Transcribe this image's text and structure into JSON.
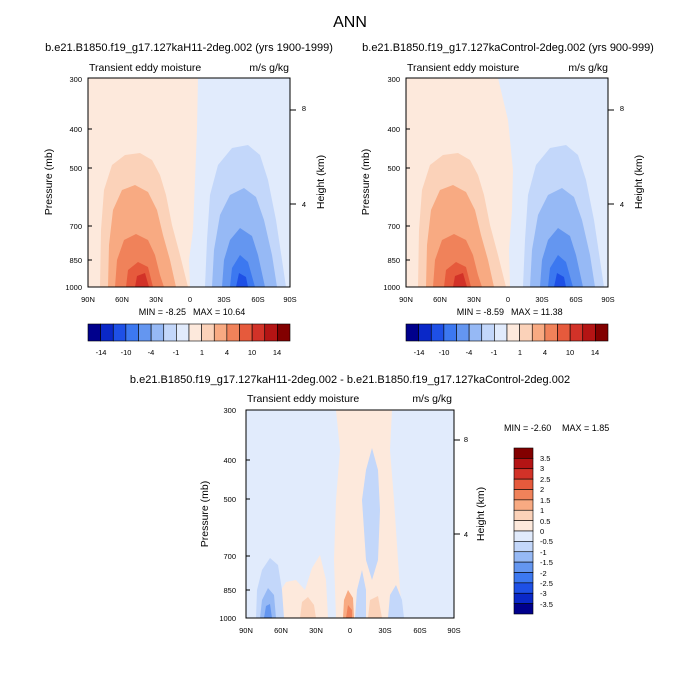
{
  "main_title": "ANN",
  "chart_data": [
    {
      "type": "contour",
      "title": "b.e21.B1850.f19_g17.127kaH11-2deg.002 (yrs 1900-1999)",
      "left_string": "Transient eddy moisture",
      "right_string": "m/s g/kg",
      "ylabel": "Pressure (mb)",
      "ylabel_right": "Height (km)",
      "xticks": [
        "90N",
        "60N",
        "30N",
        "0",
        "30S",
        "60S",
        "90S"
      ],
      "yticks": [
        "300",
        "400",
        "500",
        "700",
        "850",
        "1000"
      ],
      "height_ticks": [
        "8",
        "4"
      ],
      "min_label": "MIN = -8.25",
      "max_label": "MAX = 10.64",
      "min": -8.25,
      "max": 10.64
    },
    {
      "type": "contour",
      "title": "b.e21.B1850.f19_g17.127kaControl-2deg.002 (yrs 900-999)",
      "left_string": "Transient eddy moisture",
      "right_string": "m/s g/kg",
      "ylabel": "Pressure (mb)",
      "ylabel_right": "Height (km)",
      "xticks": [
        "90N",
        "60N",
        "30N",
        "0",
        "30S",
        "60S",
        "90S"
      ],
      "yticks": [
        "300",
        "400",
        "500",
        "700",
        "850",
        "1000"
      ],
      "height_ticks": [
        "8",
        "4"
      ],
      "min_label": "MIN = -8.59",
      "max_label": "MAX = 11.38",
      "min": -8.59,
      "max": 11.38
    },
    {
      "type": "contour",
      "title": "b.e21.B1850.f19_g17.127kaH11-2deg.002 - b.e21.B1850.f19_g17.127kaControl-2deg.002",
      "left_string": "Transient eddy moisture",
      "right_string": "m/s g/kg",
      "ylabel": "Pressure (mb)",
      "ylabel_right": "Height (km)",
      "xticks": [
        "90N",
        "60N",
        "30N",
        "0",
        "30S",
        "60S",
        "90S"
      ],
      "yticks": [
        "300",
        "400",
        "500",
        "700",
        "850",
        "1000"
      ],
      "height_ticks": [
        "8",
        "4"
      ],
      "min_label": "MIN = -2.60",
      "max_label": "MAX =  1.85",
      "min": -2.6,
      "max": 1.85
    }
  ],
  "colorbar_top": {
    "labels": [
      "-14",
      "-10",
      "-4",
      "-1",
      "1",
      "4",
      "10",
      "14"
    ],
    "colors": [
      "#00008c",
      "#0a28c8",
      "#1e50e6",
      "#3c78f0",
      "#6496f0",
      "#96b9f5",
      "#c3d7fa",
      "#e1ebfc",
      "#fde9dc",
      "#fbd2b9",
      "#f8aa82",
      "#f0825a",
      "#e65a3c",
      "#d23228",
      "#b41414",
      "#820000"
    ]
  },
  "colorbar_diff": {
    "labels": [
      "3.5",
      "3",
      "2.5",
      "2",
      "1.5",
      "1",
      "0.5",
      "0",
      "-0.5",
      "-1",
      "-1.5",
      "-2",
      "-2.5",
      "-3",
      "-3.5"
    ],
    "colors": [
      "#820000",
      "#b41414",
      "#d23228",
      "#e65a3c",
      "#f0825a",
      "#f8aa82",
      "#fbd2b9",
      "#fde9dc",
      "#e1ebfc",
      "#c3d7fa",
      "#96b9f5",
      "#6496f0",
      "#3c78f0",
      "#1e50e6",
      "#0a28c8",
      "#00008c"
    ]
  }
}
